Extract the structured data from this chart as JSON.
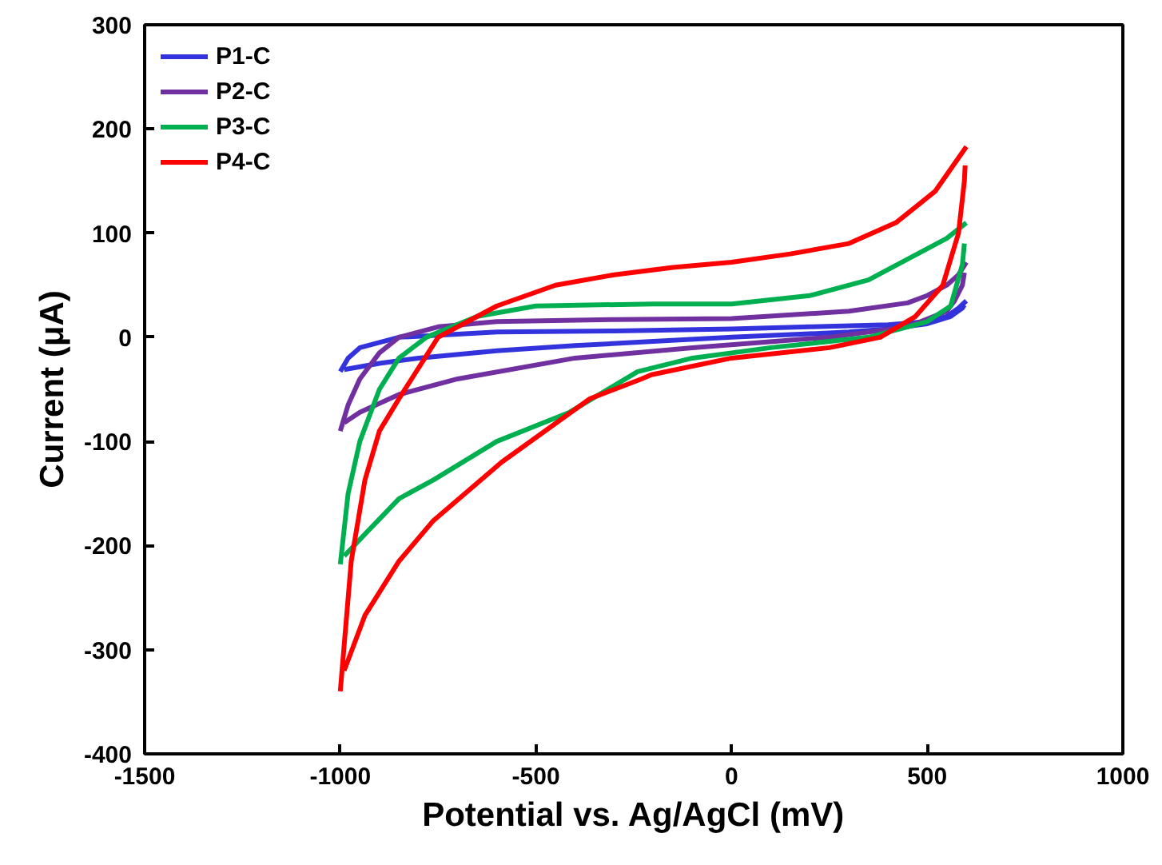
{
  "chart_data": {
    "type": "line",
    "xlabel": "Potential vs. Ag/AgCl (mV)",
    "ylabel": "Current (μA)",
    "xlim": [
      -1500,
      1000
    ],
    "ylim": [
      -400,
      300
    ],
    "xticks": [
      -1500,
      -1000,
      -500,
      0,
      500,
      1000
    ],
    "yticks": [
      -400,
      -300,
      -200,
      -100,
      0,
      100,
      200,
      300
    ],
    "grid": false,
    "legend": "top left",
    "marker": "none",
    "line_style": "solid",
    "series": [
      {
        "name": "P1-C",
        "color": "#3333dd",
        "x": [
          -1000,
          -980,
          -950,
          -900,
          -850,
          -700,
          -600,
          -300,
          0,
          200,
          400,
          500,
          550,
          580,
          600
        ],
        "values": [
          -33,
          -20,
          -10,
          -5,
          0,
          3,
          5,
          6,
          8,
          10,
          12,
          15,
          20,
          28,
          35
        ]
      },
      {
        "color": "#3333dd",
        "x": [
          595,
          590,
          560,
          500,
          400,
          300,
          0,
          -200,
          -400,
          -600,
          -800,
          -900,
          -990
        ],
        "values": [
          31,
          28,
          20,
          13,
          8,
          5,
          0,
          -4,
          -8,
          -13,
          -20,
          -25,
          -31
        ]
      },
      {
        "name": "P2-C",
        "color": "#7030a0",
        "x": [
          -1000,
          -980,
          -950,
          -900,
          -850,
          -750,
          -600,
          -300,
          0,
          300,
          450,
          500,
          550,
          580,
          600
        ],
        "values": [
          -90,
          -65,
          -40,
          -15,
          0,
          10,
          15,
          17,
          18,
          25,
          33,
          40,
          50,
          60,
          72
        ]
      },
      {
        "color": "#7030a0",
        "x": [
          595,
          590,
          570,
          550,
          450,
          250,
          -100,
          -400,
          -700,
          -850,
          -950,
          -990
        ],
        "values": [
          62,
          50,
          35,
          25,
          10,
          0,
          -10,
          -20,
          -40,
          -55,
          -72,
          -82
        ]
      },
      {
        "name": "P3-C",
        "color": "#00b050",
        "x": [
          -1000,
          -980,
          -950,
          -900,
          -850,
          -780,
          -650,
          -500,
          -200,
          0,
          200,
          350,
          450,
          550,
          600
        ],
        "values": [
          -218,
          -150,
          -100,
          -50,
          -20,
          0,
          20,
          30,
          32,
          32,
          40,
          55,
          75,
          95,
          110
        ]
      },
      {
        "color": "#00b050",
        "x": [
          595,
          590,
          560,
          500,
          350,
          100,
          -100,
          -240,
          -414,
          -600,
          -762,
          -850,
          -937,
          -990
        ],
        "values": [
          90,
          70,
          30,
          15,
          0,
          -10,
          -20,
          -33,
          -72,
          -100,
          -137,
          -155,
          -189,
          -210
        ]
      },
      {
        "name": "P4-C",
        "color": "#ff0000",
        "x": [
          -1000,
          -972,
          -937,
          -900,
          -850,
          -750,
          -600,
          -450,
          -300,
          -150,
          0,
          150,
          300,
          420,
          520,
          600
        ],
        "values": [
          -340,
          -215,
          -137,
          -90,
          -59,
          0,
          30,
          50,
          60,
          67,
          72,
          80,
          90,
          110,
          140,
          183
        ]
      },
      {
        "color": "#ff0000",
        "x": [
          597,
          595,
          580,
          540,
          470,
          380,
          250,
          0,
          -205,
          -230,
          -362,
          -588,
          -762,
          -850,
          -937,
          -990
        ],
        "values": [
          165,
          150,
          100,
          50,
          20,
          0,
          -10,
          -20,
          -36,
          -40,
          -59,
          -120,
          -176,
          -215,
          -267,
          -320
        ]
      }
    ]
  }
}
